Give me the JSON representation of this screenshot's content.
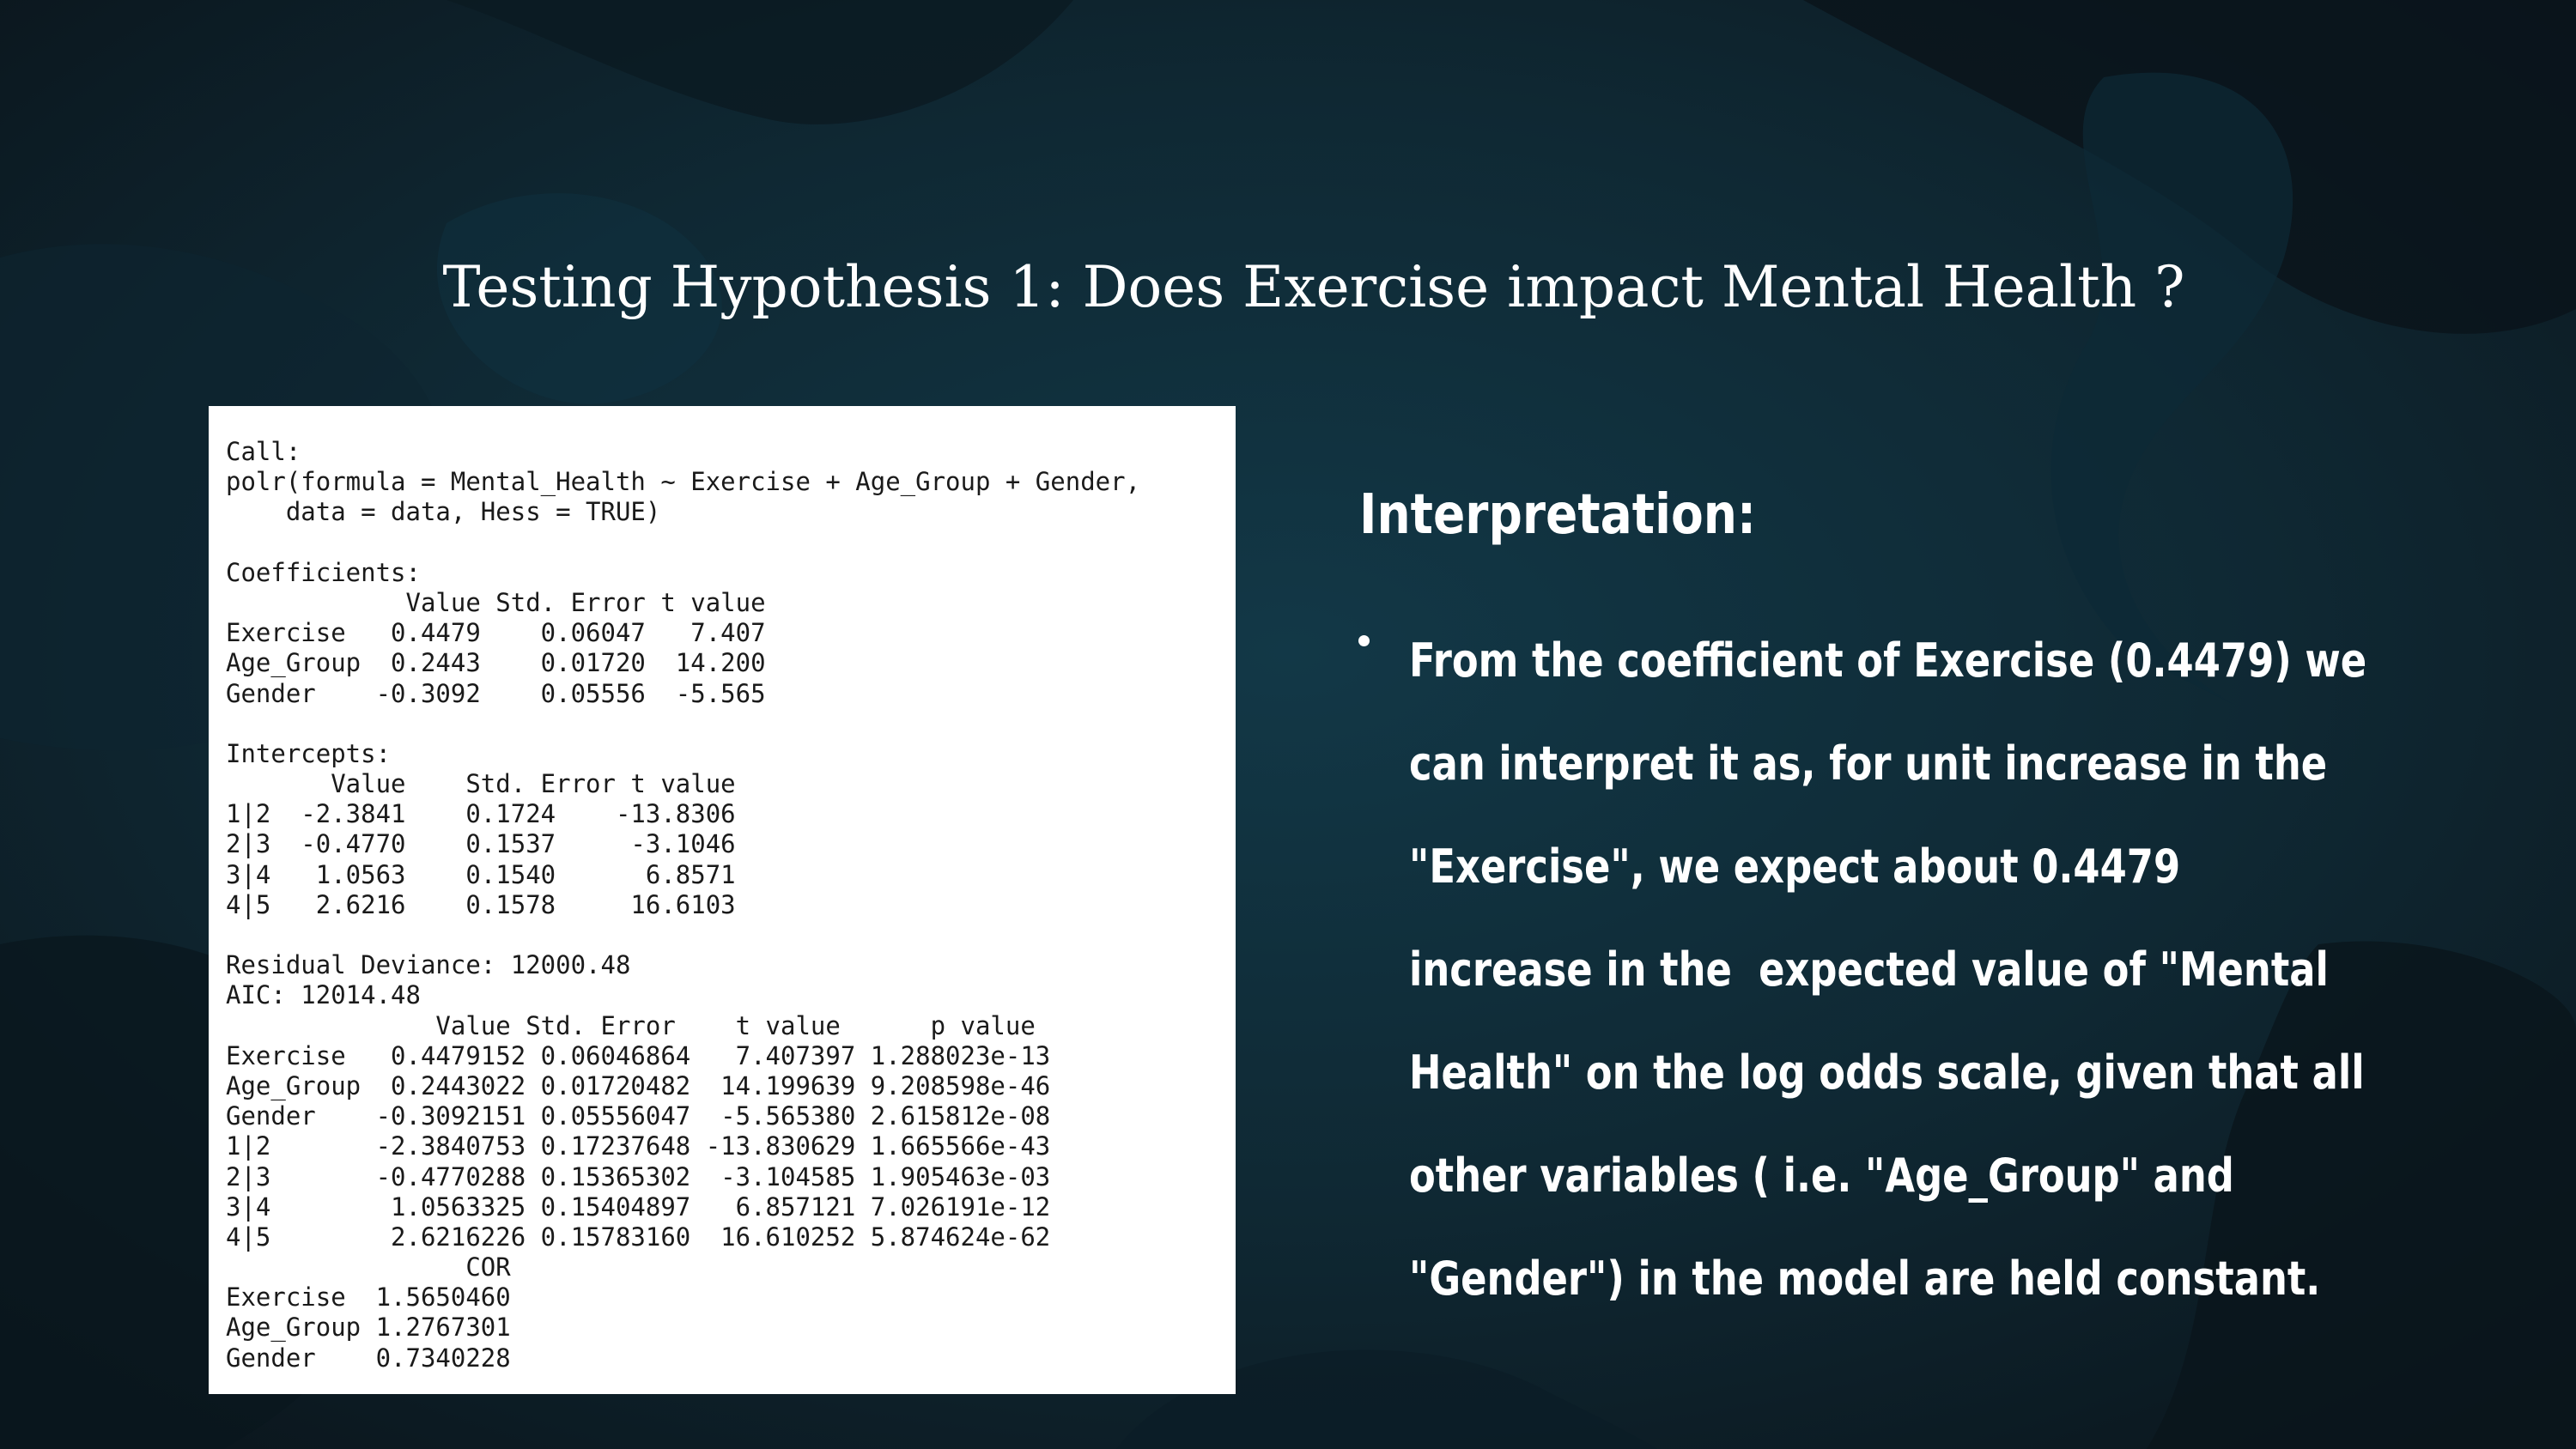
{
  "slide": {
    "title": "Testing Hypothesis 1: Does Exercise impact Mental Health ?"
  },
  "console_output": {
    "lines": [
      "Call:",
      "polr(formula = Mental_Health ~ Exercise + Age_Group + Gender,",
      "    data = data, Hess = TRUE)",
      "",
      "Coefficients:",
      "            Value Std. Error t value",
      "Exercise   0.4479    0.06047   7.407",
      "Age_Group  0.2443    0.01720  14.200",
      "Gender    -0.3092    0.05556  -5.565",
      "",
      "Intercepts:",
      "       Value    Std. Error t value",
      "1|2  -2.3841    0.1724    -13.8306",
      "2|3  -0.4770    0.1537     -3.1046",
      "3|4   1.0563    0.1540      6.8571",
      "4|5   2.6216    0.1578     16.6103",
      "",
      "Residual Deviance: 12000.48",
      "AIC: 12014.48",
      "              Value Std. Error    t value      p value",
      "Exercise   0.4479152 0.06046864   7.407397 1.288023e-13",
      "Age_Group  0.2443022 0.01720482  14.199639 9.208598e-46",
      "Gender    -0.3092151 0.05556047  -5.565380 2.615812e-08",
      "1|2       -2.3840753 0.17237648 -13.830629 1.665566e-43",
      "2|3       -0.4770288 0.15365302  -3.104585 1.905463e-03",
      "3|4        1.0563325 0.15404897   6.857121 7.026191e-12",
      "4|5        2.6216226 0.15783160  16.610252 5.874624e-62",
      "                COR",
      "Exercise  1.5650460",
      "Age_Group 1.2767301",
      "Gender    0.7340228"
    ]
  },
  "interpretation": {
    "heading": "Interpretation:",
    "bullet_lines": [
      "From the coefficient of Exercise (0.4479) we",
      "can interpret it as, for unit increase in the",
      "\"Exercise\", we expect about 0.4479",
      "increase in the  expected value of \"Mental",
      "Health\" on the log odds scale, given that all",
      "other variables ( i.e. \"Age_Group\" and",
      "\"Gender\") in the model are held constant."
    ]
  },
  "colors": {
    "background": "#0f1f28",
    "text": "#ffffff",
    "console_bg": "#ffffff",
    "console_text": "#1a1a1a"
  }
}
